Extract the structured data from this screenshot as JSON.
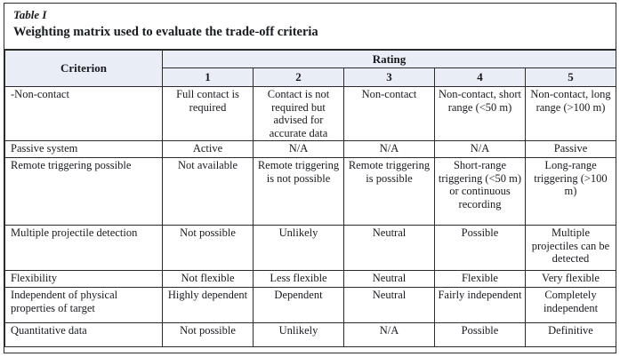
{
  "table": {
    "label": "Table I",
    "title": "Weighting matrix used to evaluate the trade-off criteria",
    "header": {
      "criterion": "Criterion",
      "rating": "Rating",
      "levels": [
        "1",
        "2",
        "3",
        "4",
        "5"
      ]
    },
    "rows": [
      {
        "criterion": "-Non-contact",
        "ratings": [
          "Full contact is required",
          "Contact is not required but advised for accurate data",
          "Non-contact",
          "Non-contact, short range (<50 m)",
          "Non-contact, long range (>100 m)"
        ]
      },
      {
        "criterion": "Passive system",
        "ratings": [
          "Active",
          "N/A",
          "N/A",
          "N/A",
          "Passive"
        ]
      },
      {
        "criterion": "Remote triggering possible",
        "ratings": [
          "Not available",
          "Remote triggering is not possible",
          "Remote triggering is possible",
          "Short-range triggering (<50 m) or continuous recording",
          "Long-range triggering (>100 m)"
        ]
      },
      {
        "criterion": "Multiple projectile detection",
        "ratings": [
          "Not possible",
          "Unlikely",
          "Neutral",
          "Possible",
          "Multiple projectiles can be detected"
        ]
      },
      {
        "criterion": "Flexibility",
        "ratings": [
          "Not flexible",
          "Less flexible",
          "Neutral",
          "Flexible",
          "Very flexible"
        ]
      },
      {
        "criterion": "Independent of physical properties of target",
        "ratings": [
          "Highly dependent",
          "Dependent",
          "Neutral",
          "Fairly independent",
          "Completely independent"
        ]
      },
      {
        "criterion": "Quantitative data",
        "ratings": [
          "Not possible",
          "Unlikely",
          "N/A",
          "Possible",
          "Definitive"
        ]
      }
    ],
    "colors": {
      "header_bg": "#e9eef6",
      "border": "#2b2b2b",
      "text": "#181a1e"
    }
  }
}
